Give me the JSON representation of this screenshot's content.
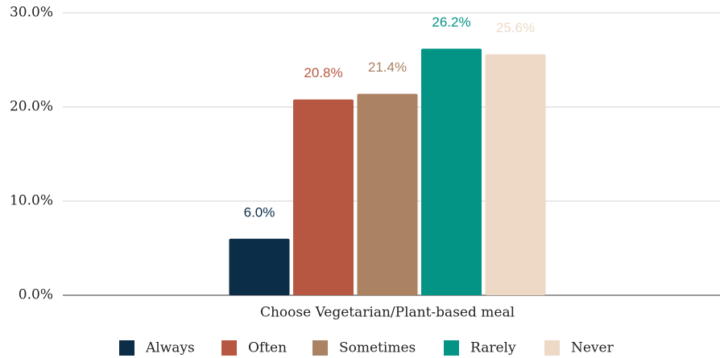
{
  "chart_data": {
    "type": "bar",
    "categories": [
      "Choose Vegetarian/Plant-based meal"
    ],
    "series": [
      {
        "name": "Always",
        "color": "#0b2d48",
        "values": [
          6.0
        ],
        "value_labels": [
          "6.0%"
        ]
      },
      {
        "name": "Often",
        "color": "#b85741",
        "values": [
          20.8
        ],
        "value_labels": [
          "20.8%"
        ]
      },
      {
        "name": "Sometimes",
        "color": "#ab8262",
        "values": [
          21.4
        ],
        "value_labels": [
          "21.4%"
        ]
      },
      {
        "name": "Rarely",
        "color": "#039485",
        "values": [
          26.2
        ],
        "value_labels": [
          "26.2%"
        ]
      },
      {
        "name": "Never",
        "color": "#eed9c7",
        "values": [
          25.6
        ],
        "value_labels": [
          "25.6%"
        ]
      }
    ],
    "ylim": [
      0,
      30
    ],
    "yticks": [
      {
        "value": 0,
        "label": "0.0%"
      },
      {
        "value": 10,
        "label": "10.0%"
      },
      {
        "value": 20,
        "label": "20.0%"
      },
      {
        "value": 30,
        "label": "30.0%"
      }
    ],
    "grid": true,
    "legend": "bottom"
  }
}
